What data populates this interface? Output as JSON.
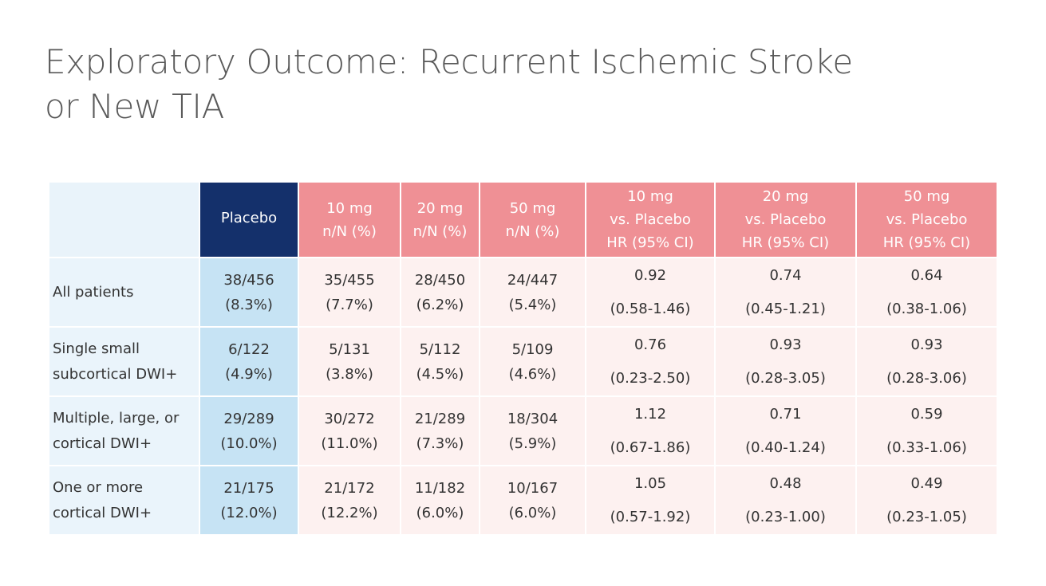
{
  "title": {
    "line1": "Exploratory Outcome: Recurrent Ischemic Stroke",
    "line2": "or New TIA"
  },
  "table": {
    "headers": [
      {
        "lines": [
          ""
        ]
      },
      {
        "lines": [
          "Placebo"
        ]
      },
      {
        "lines": [
          "10 mg",
          "n/N (%)"
        ]
      },
      {
        "lines": [
          "20 mg",
          "n/N (%)"
        ]
      },
      {
        "lines": [
          "50 mg",
          "n/N (%)"
        ]
      },
      {
        "lines": [
          "10 mg",
          "vs. Placebo",
          "HR (95% CI)"
        ]
      },
      {
        "lines": [
          "20 mg",
          "vs. Placebo",
          "HR (95% CI)"
        ]
      },
      {
        "lines": [
          "50 mg",
          "vs. Placebo",
          "HR (95% CI)"
        ]
      }
    ],
    "rows": [
      {
        "label": [
          "All patients"
        ],
        "cells": [
          [
            "38/456",
            "(8.3%)"
          ],
          [
            "35/455",
            "(7.7%)"
          ],
          [
            "28/450",
            "(6.2%)"
          ],
          [
            "24/447",
            "(5.4%)"
          ],
          [
            "0.92",
            "(0.58-1.46)"
          ],
          [
            "0.74",
            "(0.45-1.21)"
          ],
          [
            "0.64",
            "(0.38-1.06)"
          ]
        ]
      },
      {
        "label": [
          "Single small",
          "subcortical DWI+"
        ],
        "cells": [
          [
            "6/122",
            "(4.9%)"
          ],
          [
            "5/131",
            "(3.8%)"
          ],
          [
            "5/112",
            "(4.5%)"
          ],
          [
            "5/109",
            "(4.6%)"
          ],
          [
            "0.76",
            "(0.23-2.50)"
          ],
          [
            "0.93",
            "(0.28-3.05)"
          ],
          [
            "0.93",
            "(0.28-3.06)"
          ]
        ]
      },
      {
        "label": [
          "Multiple, large, or",
          "cortical DWI+"
        ],
        "cells": [
          [
            "29/289",
            "(10.0%)"
          ],
          [
            "30/272",
            "(11.0%)"
          ],
          [
            "21/289",
            "(7.3%)"
          ],
          [
            "18/304",
            "(5.9%)"
          ],
          [
            "1.12",
            "(0.67-1.86)"
          ],
          [
            "0.71",
            "(0.40-1.24)"
          ],
          [
            "0.59",
            "(0.33-1.06)"
          ]
        ]
      },
      {
        "label": [
          "One or more",
          "cortical DWI+"
        ],
        "cells": [
          [
            "21/175",
            "(12.0%)"
          ],
          [
            "21/172",
            "(12.2%)"
          ],
          [
            "11/182",
            "(6.0%)"
          ],
          [
            "10/167",
            "(6.0%)"
          ],
          [
            "1.05",
            "(0.57-1.92)"
          ],
          [
            "0.48",
            "(0.23-1.00)"
          ],
          [
            "0.49",
            "(0.23-1.05)"
          ]
        ]
      }
    ]
  },
  "colors": {
    "title_text": "#595959",
    "placebo_header": "#14306b",
    "placebo_cells": "#c6e3f4",
    "treatment_header": "#ef9095",
    "treatment_cells": "#fdf1f0",
    "label_cells": "#eaf4fb"
  }
}
